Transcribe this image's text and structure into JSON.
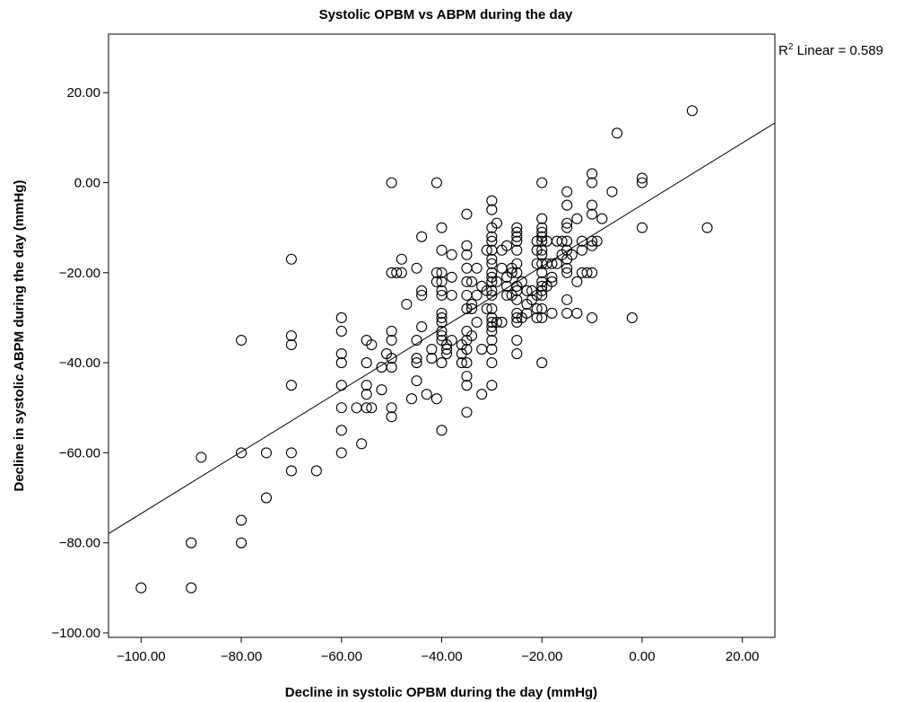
{
  "chart_data": {
    "type": "scatter",
    "title": "Systolic OPBM vs ABPM during the day",
    "xlabel": "Decline in systolic OPBM during the day (mmHg)",
    "ylabel": "Decline in systolic ABPM during the day (mmHg)",
    "xlim": [
      -106.5,
      26.5
    ],
    "ylim": [
      -101.0,
      33.0
    ],
    "xticks": [
      -100,
      -80,
      -60,
      -40,
      -20,
      0,
      20
    ],
    "yticks": [
      -100,
      -80,
      -60,
      -40,
      -20,
      0,
      20
    ],
    "xtick_labels": [
      "−100.00",
      "−80.00",
      "−60.00",
      "−40.00",
      "−20.00",
      "0.00",
      "20.00"
    ],
    "ytick_labels": [
      "−100.00",
      "−80.00",
      "−60.00",
      "−40.00",
      "−20.00",
      "0.00",
      "20.00"
    ],
    "grid": false,
    "annotation": {
      "label_prefix": "R",
      "label_sup": "2",
      "label_rest": " Linear = 0.589"
    },
    "fit_line": {
      "type": "linear",
      "slope": 0.686,
      "intercept": -4.9
    },
    "marker": "hollow-circle",
    "points": [
      [
        -100,
        -90
      ],
      [
        -90,
        -90
      ],
      [
        -90,
        -80
      ],
      [
        -88,
        -61
      ],
      [
        -80,
        -80
      ],
      [
        -80,
        -75
      ],
      [
        -80,
        -60
      ],
      [
        -80,
        -35
      ],
      [
        -75,
        -70
      ],
      [
        -75,
        -60
      ],
      [
        -70,
        -64
      ],
      [
        -70,
        -60
      ],
      [
        -70,
        -45
      ],
      [
        -70,
        -36
      ],
      [
        -70,
        -34
      ],
      [
        -70,
        -17
      ],
      [
        -65,
        -64
      ],
      [
        -60,
        -60
      ],
      [
        -60,
        -55
      ],
      [
        -60,
        -50
      ],
      [
        -60,
        -45
      ],
      [
        -60,
        -40
      ],
      [
        -60,
        -38
      ],
      [
        -60,
        -33
      ],
      [
        -60,
        -30
      ],
      [
        -57,
        -50
      ],
      [
        -56,
        -58
      ],
      [
        -55,
        -50
      ],
      [
        -55,
        -47
      ],
      [
        -55,
        -45
      ],
      [
        -55,
        -40
      ],
      [
        -55,
        -35
      ],
      [
        -54,
        -50
      ],
      [
        -54,
        -36
      ],
      [
        -52,
        -46
      ],
      [
        -52,
        -41
      ],
      [
        -51,
        -38
      ],
      [
        -50,
        -52
      ],
      [
        -50,
        -50
      ],
      [
        -50,
        -41
      ],
      [
        -50,
        -39
      ],
      [
        -50,
        -35
      ],
      [
        -50,
        -33
      ],
      [
        -50,
        -20
      ],
      [
        -50,
        0
      ],
      [
        -49,
        -20
      ],
      [
        -48,
        -20
      ],
      [
        -48,
        -17
      ],
      [
        -47,
        -27
      ],
      [
        -46,
        -48
      ],
      [
        -45,
        -44
      ],
      [
        -45,
        -40
      ],
      [
        -45,
        -39
      ],
      [
        -45,
        -35
      ],
      [
        -45,
        -19
      ],
      [
        -44,
        -25
      ],
      [
        -44,
        -24
      ],
      [
        -44,
        -32
      ],
      [
        -44,
        -12
      ],
      [
        -43,
        -47
      ],
      [
        -42,
        -39
      ],
      [
        -42,
        -37
      ],
      [
        -41,
        -48
      ],
      [
        -41,
        -20
      ],
      [
        -41,
        -22
      ],
      [
        -41,
        0
      ],
      [
        -40,
        -55
      ],
      [
        -40,
        -40
      ],
      [
        -40,
        -35
      ],
      [
        -40,
        -34
      ],
      [
        -40,
        -33
      ],
      [
        -40,
        -31
      ],
      [
        -40,
        -30
      ],
      [
        -40,
        -29
      ],
      [
        -40,
        -25
      ],
      [
        -40,
        -24
      ],
      [
        -40,
        -22
      ],
      [
        -40,
        -20
      ],
      [
        -40,
        -15
      ],
      [
        -40,
        -10
      ],
      [
        -39,
        -38
      ],
      [
        -39,
        -37
      ],
      [
        -39,
        -36
      ],
      [
        -38,
        -35
      ],
      [
        -38,
        -25
      ],
      [
        -38,
        -21
      ],
      [
        -38,
        -16
      ],
      [
        -36,
        -40
      ],
      [
        -36,
        -38
      ],
      [
        -36,
        -36
      ],
      [
        -35,
        -51
      ],
      [
        -35,
        -45
      ],
      [
        -35,
        -43
      ],
      [
        -35,
        -40
      ],
      [
        -35,
        -37
      ],
      [
        -35,
        -35
      ],
      [
        -35,
        -33
      ],
      [
        -35,
        -28
      ],
      [
        -35,
        -25
      ],
      [
        -35,
        -22
      ],
      [
        -35,
        -19
      ],
      [
        -35,
        -16
      ],
      [
        -35,
        -14
      ],
      [
        -35,
        -7
      ],
      [
        -34,
        -34
      ],
      [
        -34,
        -28
      ],
      [
        -34,
        -27
      ],
      [
        -34,
        -22
      ],
      [
        -33,
        -31
      ],
      [
        -33,
        -25
      ],
      [
        -33,
        -19
      ],
      [
        -32,
        -47
      ],
      [
        -32,
        -37
      ],
      [
        -32,
        -23
      ],
      [
        -31,
        -28
      ],
      [
        -31,
        -15
      ],
      [
        -31,
        -24
      ],
      [
        -30,
        -45
      ],
      [
        -30,
        -40
      ],
      [
        -30,
        -37
      ],
      [
        -30,
        -35
      ],
      [
        -30,
        -33
      ],
      [
        -30,
        -32
      ],
      [
        -30,
        -31
      ],
      [
        -30,
        -30
      ],
      [
        -30,
        -28
      ],
      [
        -30,
        -25
      ],
      [
        -30,
        -24
      ],
      [
        -30,
        -22
      ],
      [
        -30,
        -21
      ],
      [
        -30,
        -20
      ],
      [
        -30,
        -18
      ],
      [
        -30,
        -17
      ],
      [
        -30,
        -15
      ],
      [
        -30,
        -13
      ],
      [
        -30,
        -12
      ],
      [
        -30,
        -10
      ],
      [
        -30,
        -6
      ],
      [
        -30,
        -4
      ],
      [
        -29,
        -31
      ],
      [
        -29,
        -22
      ],
      [
        -29,
        -9
      ],
      [
        -28,
        -31
      ],
      [
        -28,
        -19
      ],
      [
        -28,
        -15
      ],
      [
        -27,
        -25
      ],
      [
        -27,
        -23
      ],
      [
        -27,
        -21
      ],
      [
        -27,
        -14
      ],
      [
        -26,
        -25
      ],
      [
        -26,
        -20
      ],
      [
        -26,
        -19
      ],
      [
        -25,
        -38
      ],
      [
        -25,
        -35
      ],
      [
        -25,
        -31
      ],
      [
        -25,
        -30
      ],
      [
        -25,
        -29
      ],
      [
        -25,
        -26
      ],
      [
        -25,
        -24
      ],
      [
        -25,
        -23
      ],
      [
        -25,
        -20
      ],
      [
        -25,
        -18
      ],
      [
        -25,
        -15
      ],
      [
        -25,
        -13
      ],
      [
        -25,
        -12
      ],
      [
        -25,
        -11
      ],
      [
        -25,
        -10
      ],
      [
        -24,
        -30
      ],
      [
        -24,
        -22
      ],
      [
        -23,
        -29
      ],
      [
        -23,
        -27
      ],
      [
        -23,
        -24
      ],
      [
        -22,
        -26
      ],
      [
        -22,
        -24
      ],
      [
        -21,
        -30
      ],
      [
        -21,
        -28
      ],
      [
        -21,
        -25
      ],
      [
        -21,
        -18
      ],
      [
        -21,
        -15
      ],
      [
        -21,
        -13
      ],
      [
        -20,
        -40
      ],
      [
        -20,
        -30
      ],
      [
        -20,
        -28
      ],
      [
        -20,
        -25
      ],
      [
        -20,
        -24
      ],
      [
        -20,
        -23
      ],
      [
        -20,
        -22
      ],
      [
        -20,
        -20
      ],
      [
        -20,
        -18
      ],
      [
        -20,
        -16
      ],
      [
        -20,
        -15
      ],
      [
        -20,
        -13
      ],
      [
        -20,
        -12
      ],
      [
        -20,
        -11
      ],
      [
        -20,
        -10
      ],
      [
        -20,
        -8
      ],
      [
        -20,
        0
      ],
      [
        -19,
        -23
      ],
      [
        -19,
        -18
      ],
      [
        -19,
        -13
      ],
      [
        -18,
        -29
      ],
      [
        -18,
        -22
      ],
      [
        -18,
        -21
      ],
      [
        -18,
        -18
      ],
      [
        -17,
        -18
      ],
      [
        -17,
        -13
      ],
      [
        -16,
        -16
      ],
      [
        -16,
        -13
      ],
      [
        -15,
        -29
      ],
      [
        -15,
        -26
      ],
      [
        -15,
        -20
      ],
      [
        -15,
        -19
      ],
      [
        -15,
        -17
      ],
      [
        -15,
        -15
      ],
      [
        -15,
        -13
      ],
      [
        -15,
        -10
      ],
      [
        -15,
        -9
      ],
      [
        -15,
        -5
      ],
      [
        -15,
        -2
      ],
      [
        -14,
        -16
      ],
      [
        -13,
        -29
      ],
      [
        -13,
        -22
      ],
      [
        -13,
        -8
      ],
      [
        -12,
        -20
      ],
      [
        -12,
        -15
      ],
      [
        -12,
        -13
      ],
      [
        -11,
        -20
      ],
      [
        -10,
        -30
      ],
      [
        -10,
        -20
      ],
      [
        -10,
        -14
      ],
      [
        -10,
        -13
      ],
      [
        -10,
        -7
      ],
      [
        -10,
        -5
      ],
      [
        -10,
        0
      ],
      [
        -10,
        2
      ],
      [
        -9,
        -13
      ],
      [
        -8,
        -8
      ],
      [
        -6,
        -2
      ],
      [
        -5,
        11
      ],
      [
        -2,
        -30
      ],
      [
        0,
        -10
      ],
      [
        0,
        0
      ],
      [
        0,
        1
      ],
      [
        10,
        16
      ],
      [
        13,
        -10
      ]
    ]
  }
}
